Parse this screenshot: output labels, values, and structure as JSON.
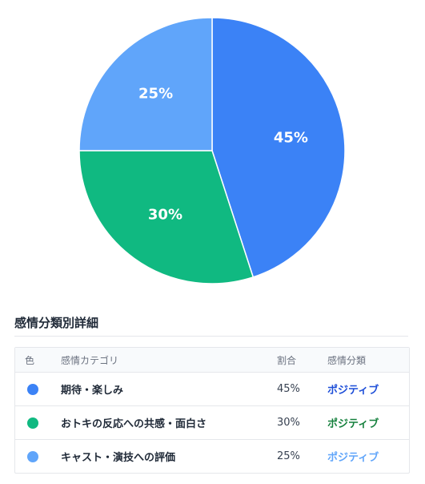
{
  "chart_data": {
    "type": "pie",
    "slices": [
      {
        "label": "45%",
        "value": 45,
        "color": "#3b82f6"
      },
      {
        "label": "30%",
        "value": 30,
        "color": "#10b981"
      },
      {
        "label": "25%",
        "value": 25,
        "color": "#60a5fa"
      }
    ]
  },
  "details": {
    "title": "感情分類別詳細",
    "headers": {
      "color": "色",
      "category": "感情カテゴリ",
      "ratio": "割合",
      "classification": "感情分類"
    },
    "rows": [
      {
        "color": "#3b82f6",
        "category": "期待・楽しみ",
        "ratio": "45%",
        "classification": "ポジティブ",
        "class_color": "#1d4ed8"
      },
      {
        "color": "#10b981",
        "category": "おトキの反応への共感・面白さ",
        "ratio": "30%",
        "classification": "ポジティブ",
        "class_color": "#15803d"
      },
      {
        "color": "#60a5fa",
        "category": "キャスト・演技への評価",
        "ratio": "25%",
        "classification": "ポジティブ",
        "class_color": "#60a5fa"
      }
    ]
  }
}
